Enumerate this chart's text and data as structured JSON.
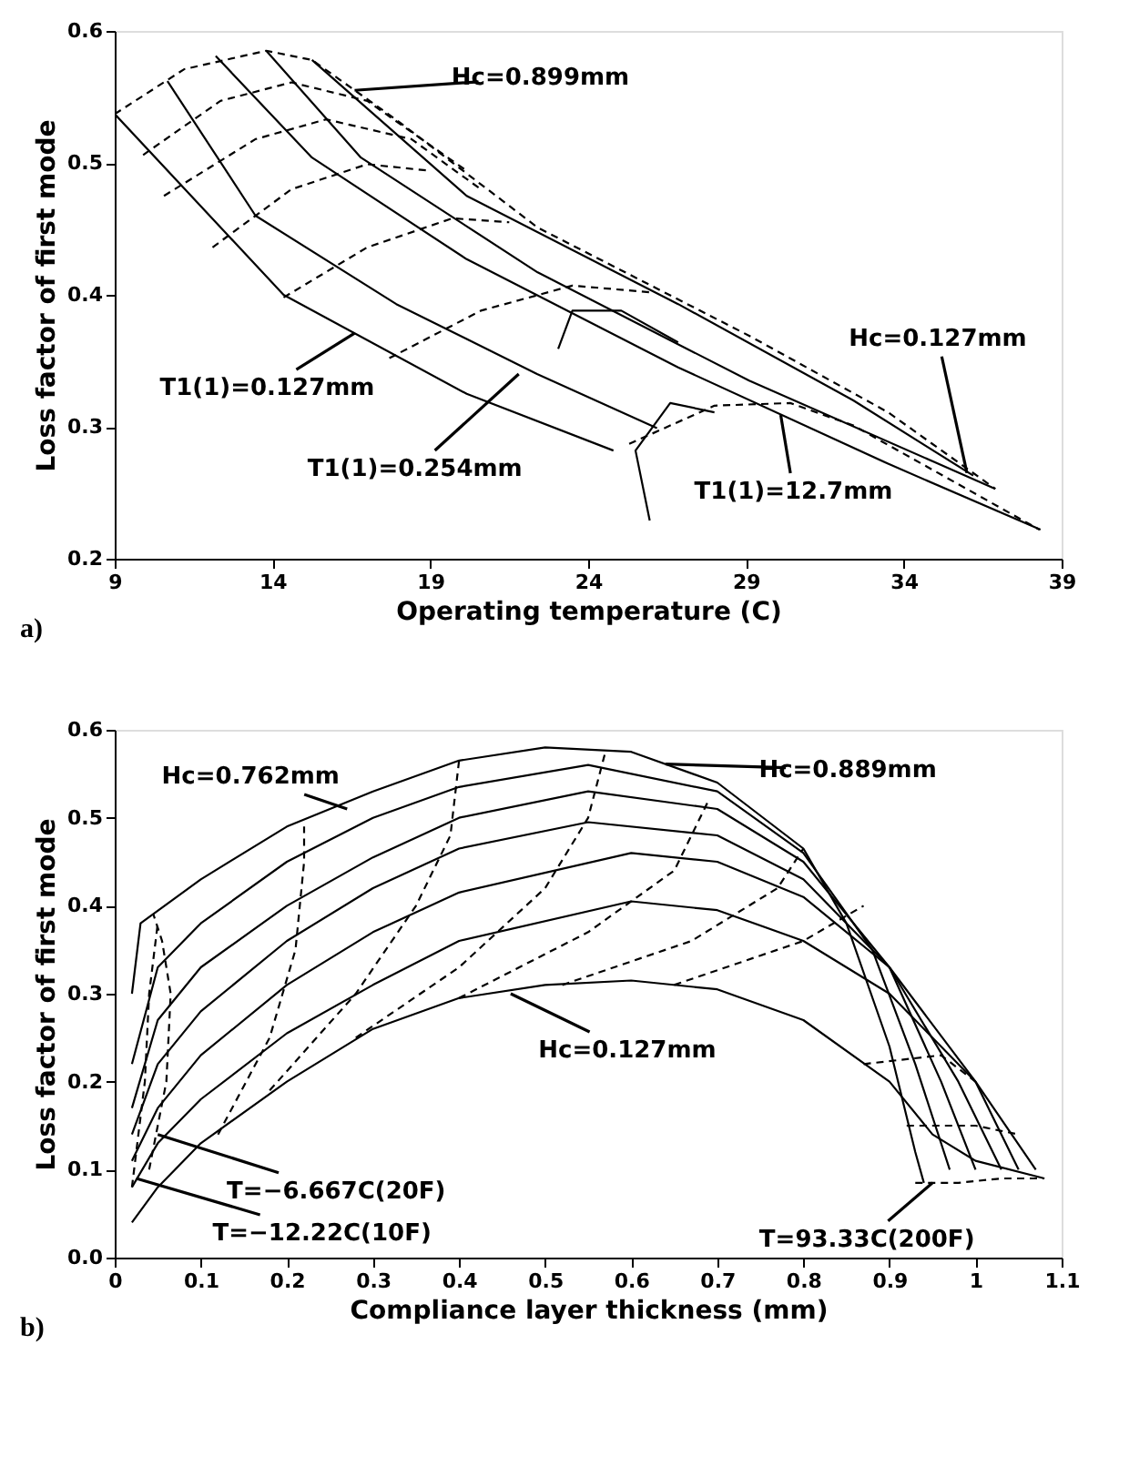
{
  "chart_data": [
    {
      "type": "line",
      "xlabel": "Operating temperature  (C)",
      "ylabel": "Loss factor of first mode",
      "xlim": [
        9,
        39
      ],
      "ylim": [
        0.2,
        0.6
      ],
      "xticks": [
        9,
        14,
        19,
        24,
        29,
        34,
        39
      ],
      "yticks": [
        0.2,
        0.3,
        0.4,
        0.5,
        0.6
      ],
      "series": [
        {
          "color": "#000000",
          "line_style": "solid",
          "x": [
            9,
            14.35,
            20.15,
            24.8
          ],
          "values": [
            0.537,
            0.4,
            0.325,
            0.282
          ]
        },
        {
          "color": "#000000",
          "line_style": "solid",
          "x": [
            10.67,
            13.46,
            17.92,
            22.38,
            26.18
          ],
          "values": [
            0.562,
            0.46,
            0.393,
            0.34,
            0.299
          ]
        },
        {
          "color": "#000000",
          "line_style": "solid",
          "x": [
            12.2,
            15.25,
            20.15,
            26.85,
            33.5,
            38.33
          ],
          "values": [
            0.581,
            0.504,
            0.427,
            0.345,
            0.272,
            0.222
          ]
        },
        {
          "color": "#000000",
          "line_style": "solid",
          "x": [
            13.8,
            16.8,
            22.4,
            29.1,
            36.9
          ],
          "values": [
            0.585,
            0.504,
            0.417,
            0.335,
            0.253
          ]
        },
        {
          "color": "#000000",
          "line_style": "solid",
          "x": [
            15.25,
            20.15,
            26.85,
            32.4,
            36.2
          ],
          "values": [
            0.578,
            0.475,
            0.393,
            0.32,
            0.263
          ]
        },
        {
          "color": "#000000",
          "line_style": "solid",
          "x": [
            25.95,
            25.5,
            26.6,
            28.0
          ],
          "values": [
            0.229,
            0.282,
            0.318,
            0.311
          ]
        },
        {
          "color": "#000000",
          "line_style": "solid",
          "x": [
            23.05,
            23.5,
            25.05,
            26.85
          ],
          "values": [
            0.359,
            0.388,
            0.388,
            0.364
          ]
        },
        {
          "color": "#000000",
          "line_style": "dashed",
          "x": [
            9,
            11.2,
            13.8,
            15.25,
            17.9,
            22.4,
            29.1,
            33.5,
            36.9
          ],
          "values": [
            0.537,
            0.571,
            0.585,
            0.578,
            0.533,
            0.451,
            0.369,
            0.311,
            0.253
          ]
        },
        {
          "color": "#000000",
          "line_style": "dashed",
          "x": [
            9.9,
            12.35,
            14.6,
            17.0,
            20.15
          ],
          "values": [
            0.506,
            0.547,
            0.561,
            0.547,
            0.494
          ]
        },
        {
          "color": "#000000",
          "line_style": "dashed",
          "x": [
            10.56,
            13.46,
            15.7,
            18.4,
            20.6
          ],
          "values": [
            0.475,
            0.518,
            0.533,
            0.518,
            0.48
          ]
        },
        {
          "color": "#000000",
          "line_style": "dashed",
          "x": [
            12.1,
            14.6,
            17.0,
            19.0
          ],
          "values": [
            0.436,
            0.48,
            0.499,
            0.494
          ]
        },
        {
          "color": "#000000",
          "line_style": "dashed",
          "x": [
            14.35,
            17.0,
            19.7,
            21.5
          ],
          "values": [
            0.398,
            0.436,
            0.458,
            0.455
          ]
        },
        {
          "color": "#000000",
          "line_style": "dashed",
          "x": [
            17.7,
            20.6,
            23.5,
            25.95
          ],
          "values": [
            0.352,
            0.388,
            0.407,
            0.402
          ]
        },
        {
          "color": "#000000",
          "line_style": "dashed",
          "x": [
            25.3,
            28.0,
            30.4,
            32.4,
            38.3
          ],
          "values": [
            0.287,
            0.316,
            0.318,
            0.301,
            0.222
          ]
        }
      ],
      "annotations": [
        {
          "text": "Hc=0.899mm",
          "x": 16.6,
          "y": 0.555
        },
        {
          "text": "Hc=0.127mm",
          "x": 36.0,
          "y": 0.265
        },
        {
          "text": "T1(1)=0.127mm",
          "x": 16.6,
          "y": 0.371
        },
        {
          "text": "T1(1)=0.254mm",
          "x": 21.8,
          "y": 0.34
        },
        {
          "text": "T1(1)=12.7mm",
          "x": 30.1,
          "y": 0.309
        },
        "a)"
      ]
    },
    {
      "type": "line",
      "xlabel": "Compliance layer thickness (mm)",
      "ylabel": "Loss factor of first mode",
      "xlim": [
        0,
        1.1
      ],
      "ylim": [
        0,
        0.6
      ],
      "xticks": [
        0,
        0.1,
        0.2,
        0.3,
        0.4,
        0.5,
        0.6,
        0.7,
        0.8,
        0.9,
        1,
        1.1
      ],
      "yticks": [
        {
          "value": 0,
          "label": "0.0"
        },
        0.1,
        0.2,
        0.3,
        0.4,
        0.5,
        0.6
      ],
      "series": [
        {
          "color": "#000000",
          "line_style": "solid",
          "x": [
            0.02,
            0.03,
            0.1,
            0.2,
            0.3,
            0.4,
            0.5,
            0.6,
            0.7,
            0.8,
            0.85,
            0.9,
            0.93,
            0.94
          ],
          "values": [
            0.3,
            0.38,
            0.43,
            0.49,
            0.53,
            0.565,
            0.58,
            0.575,
            0.54,
            0.465,
            0.38,
            0.24,
            0.12,
            0.085
          ]
        },
        {
          "color": "#000000",
          "line_style": "solid",
          "x": [
            0.02,
            0.05,
            0.1,
            0.2,
            0.3,
            0.4,
            0.55,
            0.7,
            0.8,
            0.88,
            0.93,
            0.97
          ],
          "values": [
            0.22,
            0.33,
            0.38,
            0.45,
            0.5,
            0.535,
            0.56,
            0.53,
            0.46,
            0.35,
            0.22,
            0.1
          ]
        },
        {
          "color": "#000000",
          "line_style": "solid",
          "x": [
            0.02,
            0.05,
            0.1,
            0.2,
            0.3,
            0.4,
            0.55,
            0.7,
            0.8,
            0.9,
            0.96,
            1.0
          ],
          "values": [
            0.17,
            0.27,
            0.33,
            0.4,
            0.455,
            0.5,
            0.53,
            0.51,
            0.45,
            0.33,
            0.2,
            0.1
          ]
        },
        {
          "color": "#000000",
          "line_style": "solid",
          "x": [
            0.02,
            0.05,
            0.1,
            0.2,
            0.3,
            0.4,
            0.55,
            0.7,
            0.8,
            0.9,
            0.98,
            1.03
          ],
          "values": [
            0.14,
            0.22,
            0.28,
            0.36,
            0.42,
            0.465,
            0.495,
            0.48,
            0.43,
            0.33,
            0.2,
            0.1
          ]
        },
        {
          "color": "#000000",
          "line_style": "solid",
          "x": [
            0.02,
            0.05,
            0.1,
            0.2,
            0.3,
            0.4,
            0.6,
            0.7,
            0.8,
            0.9,
            1.0,
            1.05
          ],
          "values": [
            0.11,
            0.17,
            0.23,
            0.31,
            0.37,
            0.415,
            0.46,
            0.45,
            0.41,
            0.33,
            0.2,
            0.1
          ]
        },
        {
          "color": "#000000",
          "line_style": "solid",
          "x": [
            0.02,
            0.05,
            0.1,
            0.2,
            0.3,
            0.4,
            0.6,
            0.7,
            0.8,
            0.9,
            1.0,
            1.07
          ],
          "values": [
            0.08,
            0.13,
            0.18,
            0.255,
            0.31,
            0.36,
            0.405,
            0.395,
            0.36,
            0.3,
            0.2,
            0.1
          ]
        },
        {
          "color": "#000000",
          "line_style": "solid",
          "x": [
            0.02,
            0.05,
            0.1,
            0.2,
            0.3,
            0.4,
            0.5,
            0.6,
            0.7,
            0.8,
            0.9,
            0.95,
            1.0,
            1.08
          ],
          "values": [
            0.04,
            0.08,
            0.13,
            0.2,
            0.26,
            0.295,
            0.31,
            0.315,
            0.305,
            0.27,
            0.2,
            0.14,
            0.11,
            0.09
          ]
        },
        {
          "color": "#000000",
          "line_style": "dashed",
          "x": [
            0.02,
            0.035,
            0.04,
            0.05
          ],
          "values": [
            0.08,
            0.2,
            0.3,
            0.38
          ]
        },
        {
          "color": "#000000",
          "line_style": "dashed",
          "x": [
            0.04,
            0.06,
            0.065,
            0.055,
            0.045
          ],
          "values": [
            0.1,
            0.2,
            0.3,
            0.36,
            0.39
          ]
        },
        {
          "color": "#000000",
          "line_style": "dashed",
          "x": [
            0.12,
            0.18,
            0.21,
            0.22,
            0.22
          ],
          "values": [
            0.14,
            0.25,
            0.35,
            0.45,
            0.49
          ]
        },
        {
          "color": "#000000",
          "line_style": "dashed",
          "x": [
            0.18,
            0.28,
            0.35,
            0.39,
            0.4
          ],
          "values": [
            0.19,
            0.3,
            0.4,
            0.48,
            0.565
          ]
        },
        {
          "color": "#000000",
          "line_style": "dashed",
          "x": [
            0.28,
            0.4,
            0.5,
            0.55,
            0.57
          ],
          "values": [
            0.25,
            0.33,
            0.42,
            0.5,
            0.575
          ]
        },
        {
          "color": "#000000",
          "line_style": "dashed",
          "x": [
            0.4,
            0.55,
            0.65,
            0.69
          ],
          "values": [
            0.295,
            0.37,
            0.44,
            0.52
          ]
        },
        {
          "color": "#000000",
          "line_style": "dashed",
          "x": [
            0.52,
            0.67,
            0.77,
            0.8
          ],
          "values": [
            0.31,
            0.36,
            0.42,
            0.465
          ]
        },
        {
          "color": "#000000",
          "line_style": "dashed",
          "x": [
            0.65,
            0.8,
            0.87
          ],
          "values": [
            0.31,
            0.36,
            0.4
          ]
        },
        {
          "color": "#000000",
          "line_style": "dashed",
          "x": [
            0.87,
            0.96,
            1.0
          ],
          "values": [
            0.22,
            0.23,
            0.2
          ]
        },
        {
          "color": "#000000",
          "line_style": "dashed",
          "x": [
            0.92,
            1.0,
            1.05
          ],
          "values": [
            0.15,
            0.15,
            0.14
          ]
        },
        {
          "color": "#000000",
          "line_style": "dashed",
          "x": [
            0.93,
            0.98,
            1.03,
            1.08
          ],
          "values": [
            0.085,
            0.085,
            0.09,
            0.09
          ]
        }
      ],
      "annotations": [
        {
          "text": "Hc=0.762mm",
          "x": 0.27,
          "y": 0.51
        },
        {
          "text": "Hc=0.889mm",
          "x": 0.64,
          "y": 0.561
        },
        {
          "text": "Hc=0.127mm",
          "x": 0.46,
          "y": 0.3
        },
        {
          "text": "T=−6.667C(20F)",
          "x": 0.05,
          "y": 0.14
        },
        {
          "text": "T=−12.22C(10F)",
          "x": 0.025,
          "y": 0.09
        },
        {
          "text": "T=93.33C(200F)",
          "x": 0.95,
          "y": 0.085
        },
        "b)"
      ]
    }
  ]
}
